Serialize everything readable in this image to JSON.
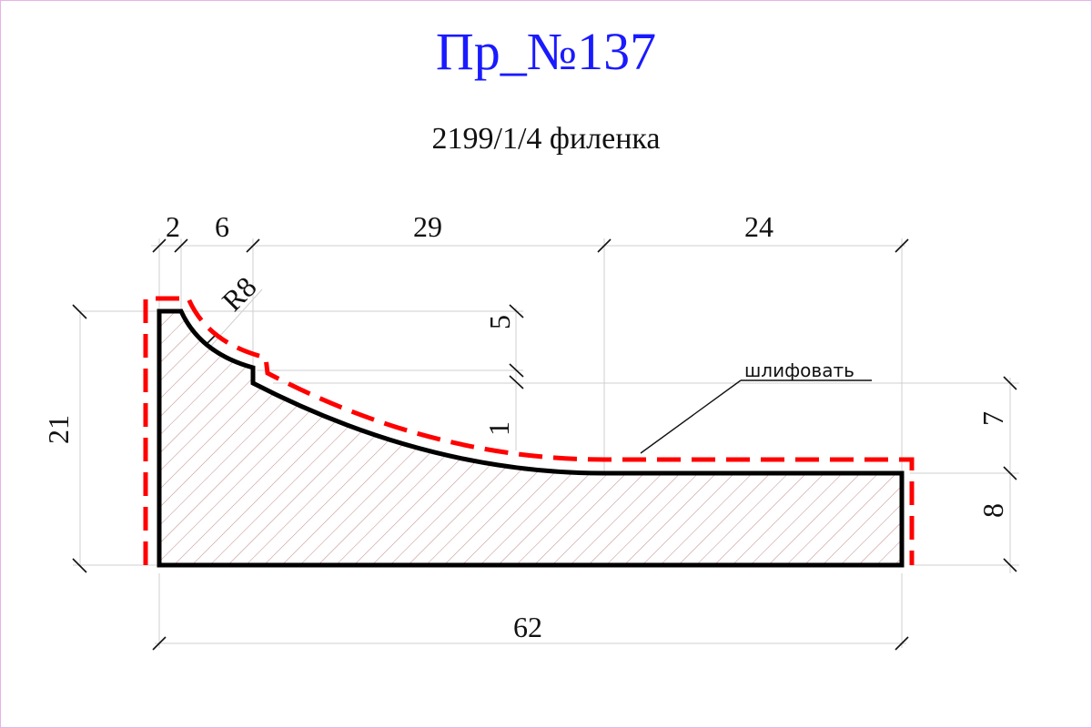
{
  "drawing": {
    "title": "Пр_№137",
    "subtitle": "2199/1/4 филенка",
    "dimensions": {
      "top_2": "2",
      "top_6": "6",
      "top_29": "29",
      "top_24": "24",
      "radius": "R8",
      "step_5": "5",
      "step_1": "1",
      "right_7": "7",
      "right_8": "8",
      "left_21": "21",
      "bottom_62": "62"
    },
    "note": "шлифовать",
    "colors": {
      "title": "#1a1aff",
      "profile": "#000000",
      "sanding_line": "#ff0000",
      "hatch": "#c08a8a",
      "extension_lines": "#cfcfcf"
    }
  }
}
